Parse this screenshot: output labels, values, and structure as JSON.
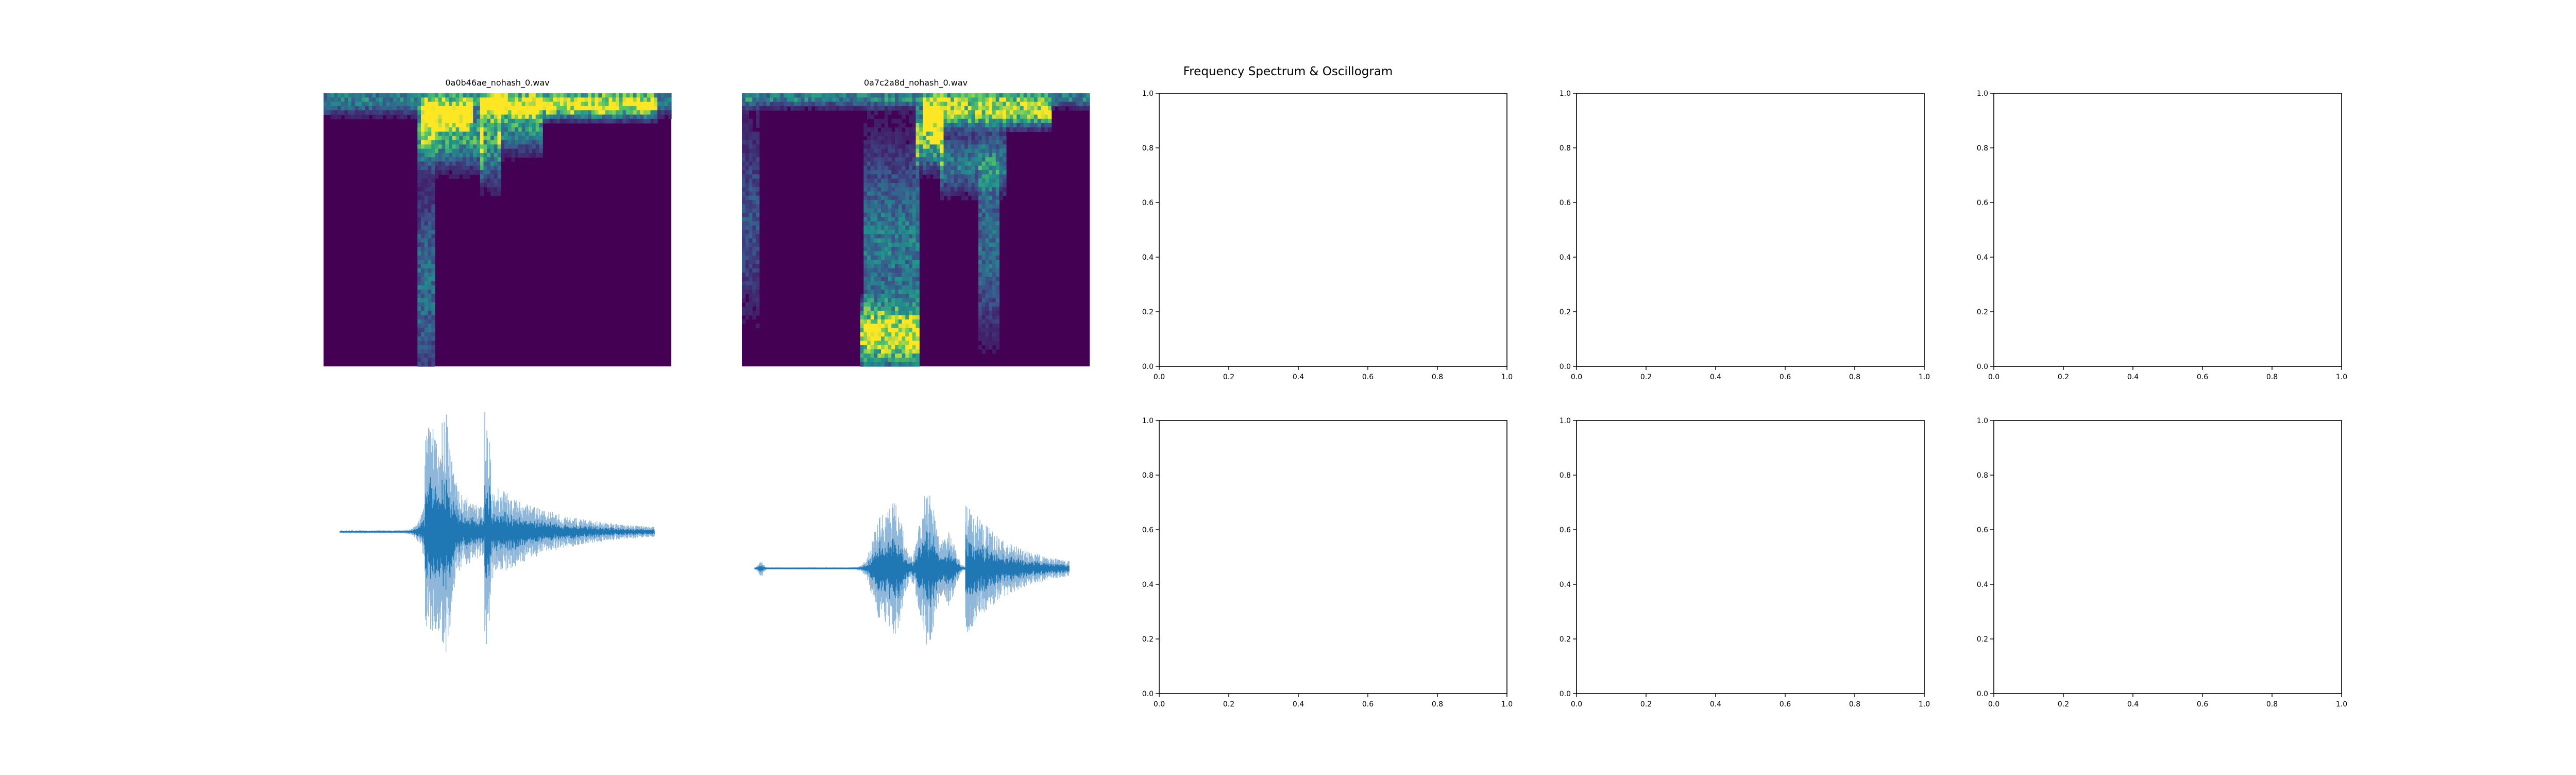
{
  "figure": {
    "suptitle": "Frequency Spectrum & Oscillogram",
    "colors": {
      "waveform": "#1f77b4",
      "waveform_light": "#8fb7da",
      "spectrogram_low": "#440154",
      "spectrogram_high": "#fde725",
      "axes": "#000000"
    }
  },
  "chart_data": [
    {
      "type": "heatmap",
      "panel": "row1-col1",
      "title": "0a0b46ae_nohash_0.wav",
      "colormap": "viridis",
      "axes_visible": false,
      "description_of_energy": "low-frequency energy concentrated in the second half"
    },
    {
      "type": "heatmap",
      "panel": "row1-col2",
      "title": "0a7c2a8d_nohash_0.wav",
      "colormap": "viridis",
      "axes_visible": false
    },
    {
      "type": "empty",
      "panel": "row1-col3",
      "xlim": [
        0,
        1
      ],
      "ylim": [
        0,
        1
      ],
      "xticks": [
        "0.0",
        "0.2",
        "0.4",
        "0.6",
        "0.8",
        "1.0"
      ],
      "yticks": [
        "0.0",
        "0.2",
        "0.4",
        "0.6",
        "0.8",
        "1.0"
      ]
    },
    {
      "type": "empty",
      "panel": "row1-col4",
      "xlim": [
        0,
        1
      ],
      "ylim": [
        0,
        1
      ],
      "xticks": [
        "0.0",
        "0.2",
        "0.4",
        "0.6",
        "0.8",
        "1.0"
      ],
      "yticks": [
        "0.0",
        "0.2",
        "0.4",
        "0.6",
        "0.8",
        "1.0"
      ]
    },
    {
      "type": "empty",
      "panel": "row1-col5",
      "xlim": [
        0,
        1
      ],
      "ylim": [
        0,
        1
      ],
      "xticks": [
        "0.0",
        "0.2",
        "0.4",
        "0.6",
        "0.8",
        "1.0"
      ],
      "yticks": [
        "0.0",
        "0.2",
        "0.4",
        "0.6",
        "0.8",
        "1.0"
      ]
    },
    {
      "type": "line",
      "panel": "row2-col1",
      "axes_visible": false,
      "waveform_profile": "short silence, loud burst, decaying tail"
    },
    {
      "type": "line",
      "panel": "row2-col2",
      "axes_visible": false,
      "waveform_profile": "silence, three bursts, decaying tail"
    },
    {
      "type": "empty",
      "panel": "row2-col3",
      "xlim": [
        0,
        1
      ],
      "ylim": [
        0,
        1
      ],
      "xticks": [
        "0.0",
        "0.2",
        "0.4",
        "0.6",
        "0.8",
        "1.0"
      ],
      "yticks": [
        "0.0",
        "0.2",
        "0.4",
        "0.6",
        "0.8",
        "1.0"
      ]
    },
    {
      "type": "empty",
      "panel": "row2-col4",
      "xlim": [
        0,
        1
      ],
      "ylim": [
        0,
        1
      ],
      "xticks": [
        "0.0",
        "0.2",
        "0.4",
        "0.6",
        "0.8",
        "1.0"
      ],
      "yticks": [
        "0.0",
        "0.2",
        "0.4",
        "0.6",
        "0.8",
        "1.0"
      ]
    },
    {
      "type": "empty",
      "panel": "row2-col5",
      "xlim": [
        0,
        1
      ],
      "ylim": [
        0,
        1
      ],
      "xticks": [
        "0.0",
        "0.2",
        "0.4",
        "0.6",
        "0.8",
        "1.0"
      ],
      "yticks": [
        "0.0",
        "0.2",
        "0.4",
        "0.6",
        "0.8",
        "1.0"
      ]
    }
  ]
}
